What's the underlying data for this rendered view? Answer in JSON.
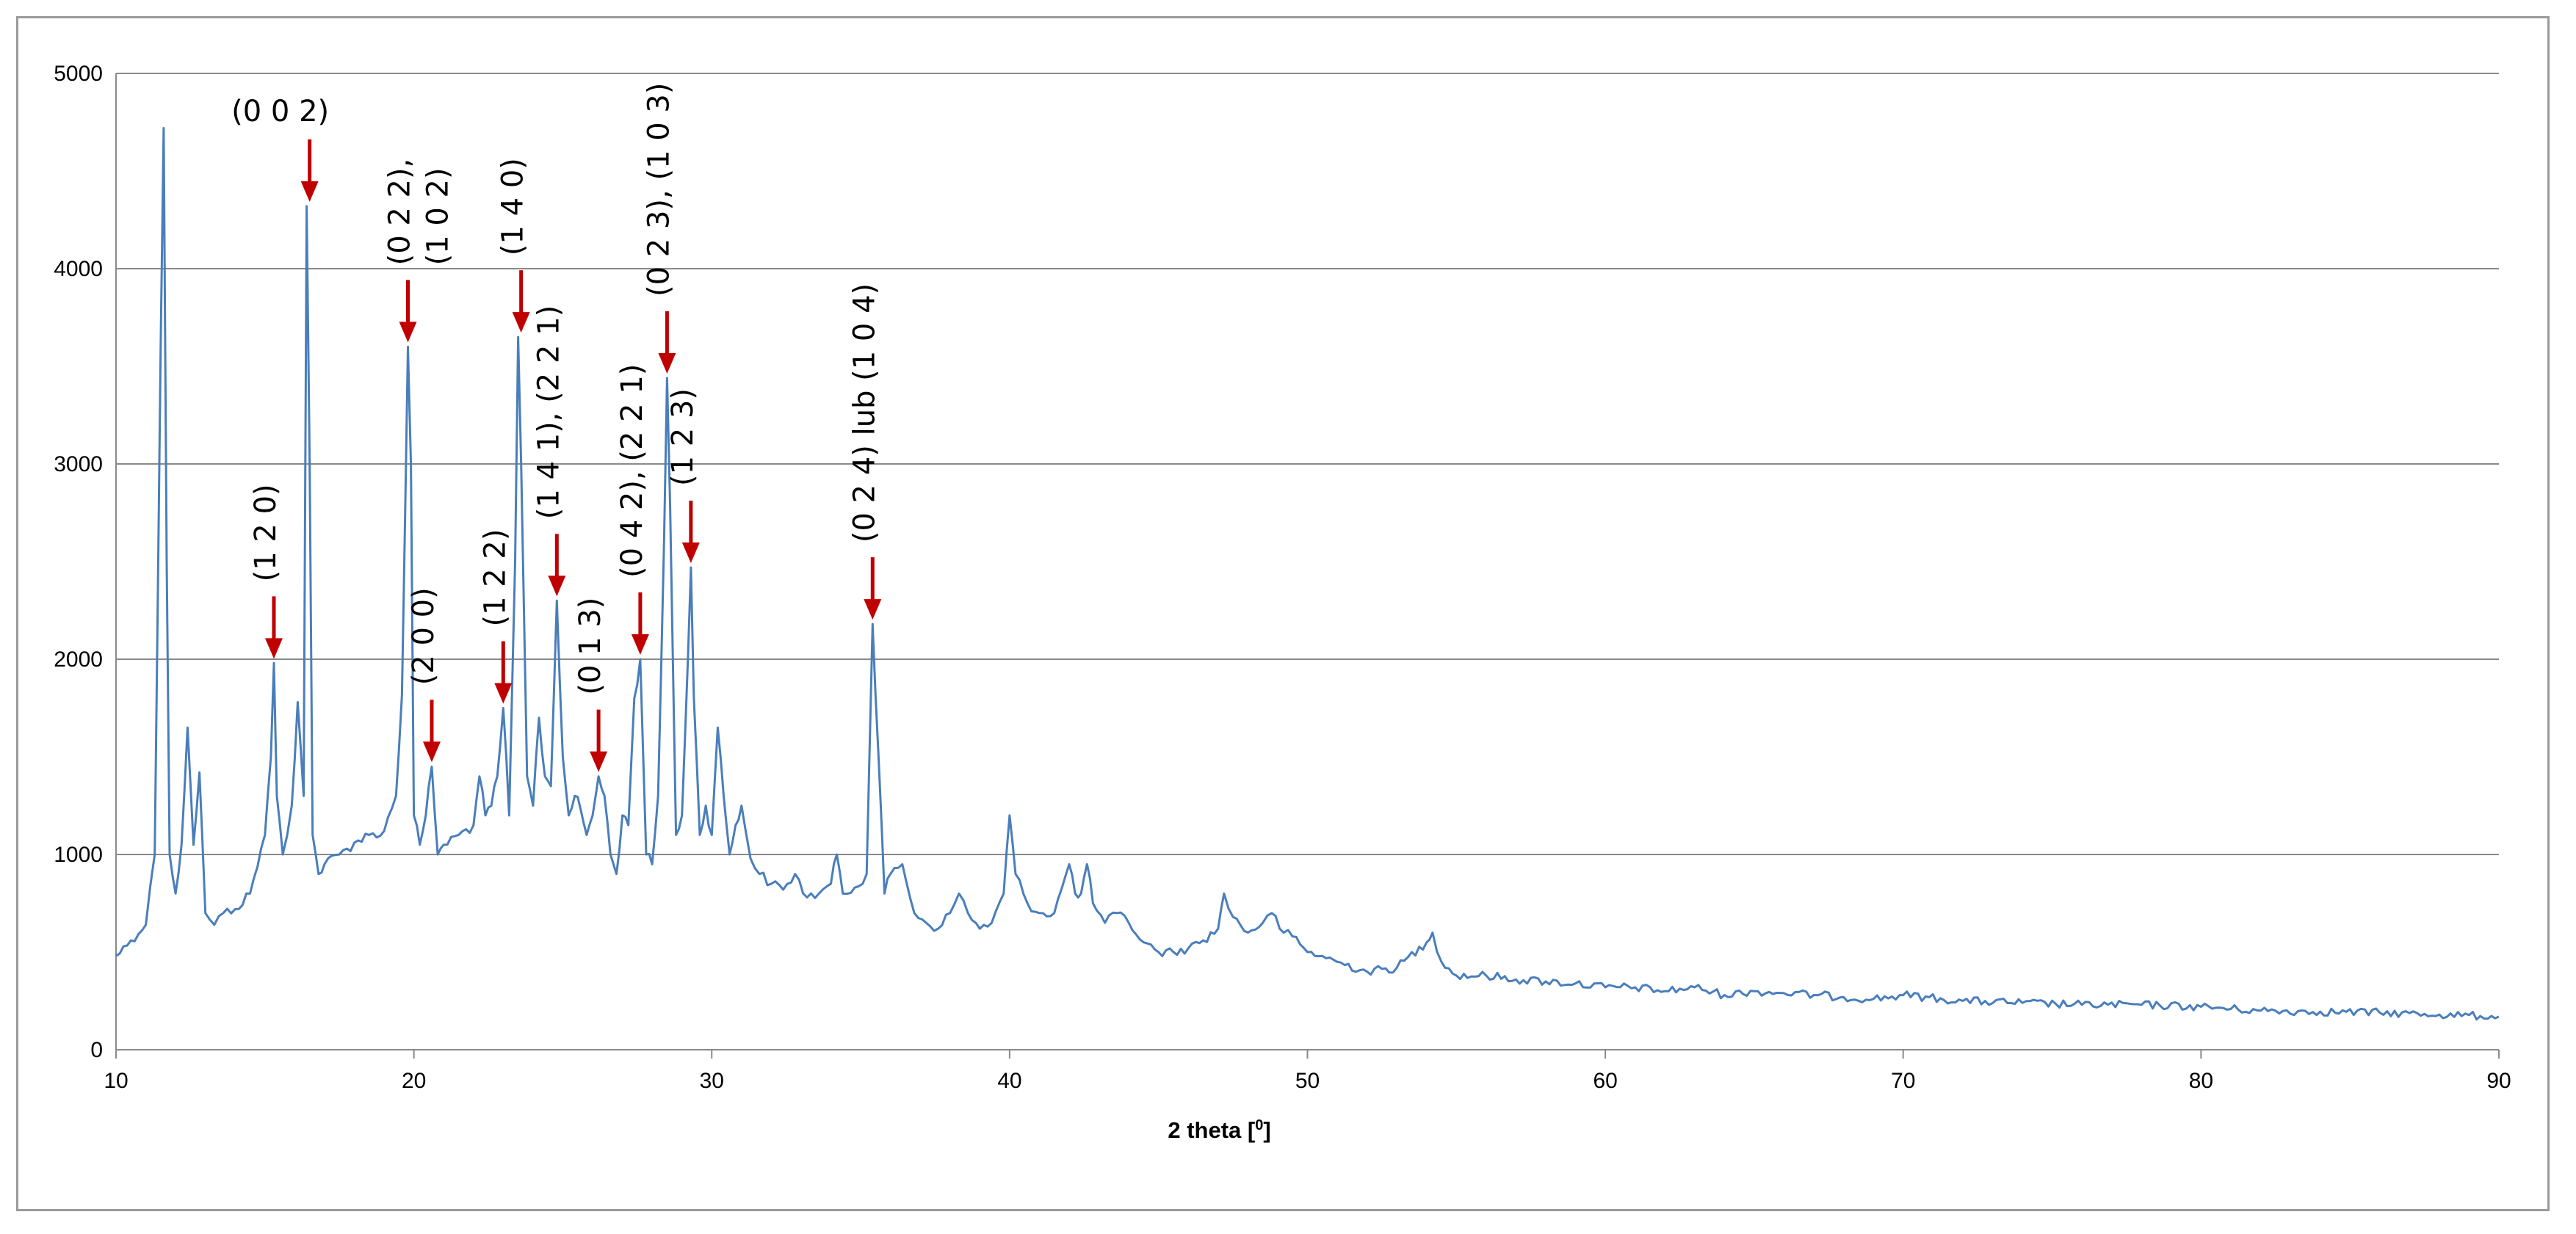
{
  "chart_data": {
    "type": "line",
    "title": "",
    "xlabel": "2 theta [",
    "xlabel_unit": "0",
    "xlabel_close": "]",
    "ylabel": "",
    "xlim": [
      10,
      90
    ],
    "ylim": [
      0,
      5000
    ],
    "x_ticks": [
      10,
      20,
      30,
      40,
      50,
      60,
      70,
      80,
      90
    ],
    "y_ticks": [
      0,
      1000,
      2000,
      3000,
      4000,
      5000
    ],
    "grid": "horizontal",
    "legend": "none",
    "line_color": "#4a7ebb",
    "arrow_color": "#c00000",
    "series": [
      {
        "x": [
          10.0,
          10.5,
          11.0,
          11.3,
          11.5,
          11.6,
          11.7,
          11.8,
          12.0,
          12.2,
          12.4,
          12.6,
          12.8,
          13.0,
          13.3,
          13.6,
          14.0,
          14.5,
          15.0,
          15.2,
          15.3,
          15.4,
          15.6,
          15.9,
          16.1,
          16.3,
          16.4,
          16.5,
          16.6,
          16.8,
          17.0,
          17.5,
          18.0,
          18.5,
          19.0,
          19.4,
          19.6,
          19.8,
          19.9,
          20.0,
          20.2,
          20.4,
          20.6,
          20.8,
          21.0,
          21.5,
          22.0,
          22.2,
          22.4,
          22.6,
          22.8,
          23.0,
          23.2,
          23.4,
          23.5,
          23.6,
          23.8,
          24.0,
          24.2,
          24.4,
          24.6,
          24.8,
          25.0,
          25.2,
          25.4,
          25.6,
          25.8,
          26.0,
          26.2,
          26.4,
          26.6,
          26.8,
          27.0,
          27.2,
          27.4,
          27.6,
          27.8,
          28.0,
          28.2,
          28.4,
          28.5,
          28.6,
          28.8,
          29.0,
          29.2,
          29.3,
          29.4,
          29.6,
          29.8,
          30.0,
          30.2,
          30.4,
          30.6,
          30.8,
          31.0,
          31.3,
          31.6,
          32.0,
          32.4,
          32.8,
          33.2,
          33.6,
          34.0,
          34.2,
          34.4,
          34.8,
          35.2,
          35.4,
          35.6,
          35.8,
          36.0,
          36.4,
          36.8,
          37.2,
          37.6,
          38.0,
          38.3,
          38.6,
          39.0,
          39.4,
          39.8,
          40.0,
          40.2,
          40.6,
          41.0,
          41.5,
          42.0,
          42.2,
          42.4,
          42.6,
          42.8,
          43.2,
          43.6,
          44.0,
          44.5,
          45.0,
          45.5,
          46.0,
          46.5,
          47.0,
          47.2,
          47.5,
          48.0,
          48.5,
          48.8,
          49.2,
          49.5,
          50.0,
          50.5,
          51.0,
          52.0,
          53.0,
          54.0,
          54.2,
          54.5,
          55.0,
          56.0,
          57.0,
          58.0,
          59.0,
          60.0,
          61.0,
          62.0,
          63.0,
          64.0,
          65.0,
          66.0,
          67.0,
          68.0,
          69.0,
          70.0,
          72.0,
          74.0,
          76.0,
          78.0,
          80.0,
          82.0,
          84.0,
          86.0,
          88.0,
          90.0
        ],
        "y": [
          480,
          560,
          640,
          1000,
          3600,
          4720,
          2500,
          1000,
          800,
          1050,
          1650,
          1050,
          1420,
          700,
          640,
          700,
          720,
          800,
          1100,
          1500,
          1980,
          1300,
          1000,
          1250,
          1780,
          1300,
          4320,
          3000,
          1100,
          900,
          950,
          1000,
          1060,
          1100,
          1120,
          1300,
          1820,
          3600,
          3000,
          1200,
          1050,
          1200,
          1450,
          1000,
          1050,
          1100,
          1150,
          1400,
          1200,
          1250,
          1400,
          1750,
          1200,
          2500,
          3650,
          3000,
          1400,
          1250,
          1700,
          1400,
          1350,
          2300,
          1500,
          1200,
          1300,
          1230,
          1100,
          1200,
          1400,
          1300,
          1000,
          900,
          1200,
          1150,
          1800,
          2000,
          1000,
          950,
          1300,
          2600,
          3440,
          2800,
          1100,
          1200,
          2000,
          2470,
          1800,
          1100,
          1250,
          1100,
          1650,
          1300,
          1000,
          1150,
          1250,
          980,
          900,
          850,
          820,
          900,
          780,
          800,
          850,
          1000,
          800,
          830,
          900,
          2180,
          1500,
          800,
          900,
          950,
          700,
          650,
          620,
          700,
          800,
          700,
          620,
          650,
          800,
          1200,
          900,
          750,
          700,
          700,
          950,
          800,
          800,
          950,
          750,
          650,
          700,
          650,
          550,
          500,
          500,
          520,
          560,
          620,
          800,
          680,
          600,
          650,
          700,
          600,
          580,
          500,
          480,
          450,
          400,
          420,
          550,
          600,
          450,
          380,
          380,
          360,
          350,
          340,
          320,
          320,
          300,
          320,
          280,
          300,
          290,
          280,
          270,
          260,
          280,
          250,
          240,
          230,
          230,
          220,
          200,
          195,
          190,
          180,
          170
        ]
      }
    ],
    "annotations": [
      {
        "text": "(0 0 2)",
        "x": 16.5,
        "y": 4320,
        "rotated": false
      },
      {
        "text": "(1 2 0)",
        "x": 15.3,
        "y": 1980,
        "rotated": true
      },
      {
        "text": "(0 2 2),",
        "x": 19.8,
        "y": 3600,
        "rotated": true
      },
      {
        "text": "(1 0 2)",
        "x": 19.8,
        "y": 3600,
        "rotated": true
      },
      {
        "text": "(2 0 0)",
        "x": 20.6,
        "y": 1450,
        "rotated": true
      },
      {
        "text": "(1 2 2)",
        "x": 23.0,
        "y": 1750,
        "rotated": true
      },
      {
        "text": "(1 4 0)",
        "x": 23.6,
        "y": 3650,
        "rotated": true
      },
      {
        "text": "(1 4 1), (2 2 1)",
        "x": 24.8,
        "y": 2300,
        "rotated": true
      },
      {
        "text": "(0 1 3)",
        "x": 26.2,
        "y": 1400,
        "rotated": true
      },
      {
        "text": "(0 4 2), (2 2 1)",
        "x": 27.6,
        "y": 2000,
        "rotated": true
      },
      {
        "text": "(0 2 3), (1 0 3)",
        "x": 28.5,
        "y": 3440,
        "rotated": true
      },
      {
        "text": "(1 2 3)",
        "x": 29.3,
        "y": 2470,
        "rotated": true
      },
      {
        "text": "(0 2 4) lub (1 0 4)",
        "x": 35.4,
        "y": 2180,
        "rotated": true
      }
    ]
  }
}
